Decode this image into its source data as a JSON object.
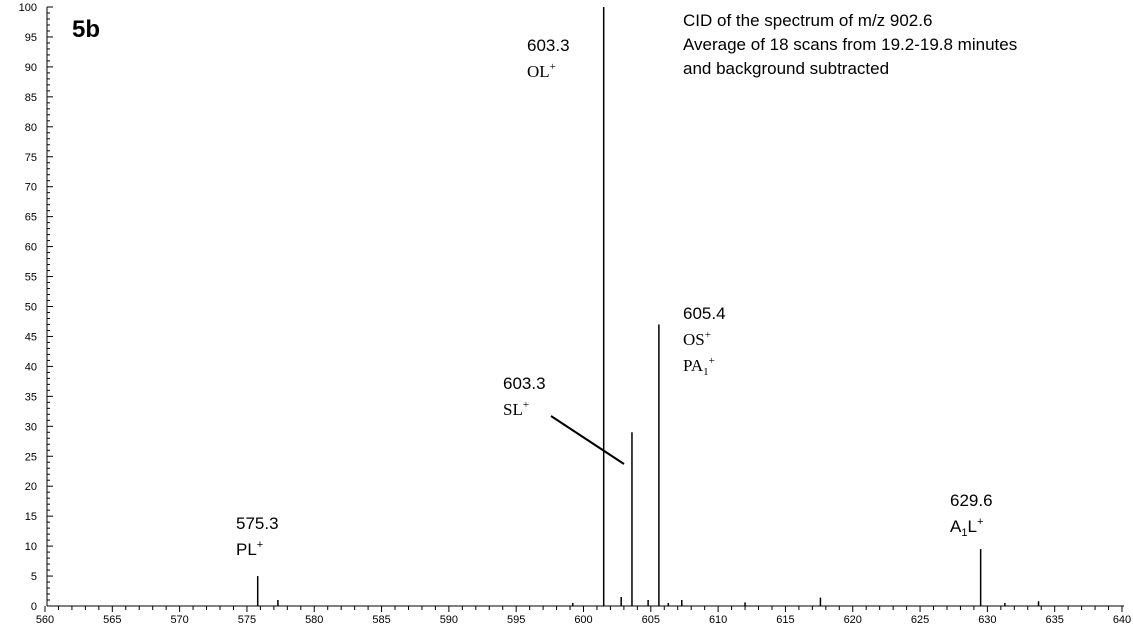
{
  "chart_data": {
    "type": "spectrum",
    "panel_label": "5b",
    "description": [
      "CID of the spectrum of m/z 902.6",
      "Average of 18 scans from 19.2-19.8 minutes",
      "and background subtracted"
    ],
    "x": [
      575.8,
      577.3,
      599.2,
      601.5,
      602.8,
      603.6,
      604.8,
      605.6,
      606.3,
      607.3,
      612.0,
      617.6,
      629.5,
      631.3,
      633.8
    ],
    "values": [
      5,
      1,
      0.5,
      100,
      1.5,
      29,
      1,
      47,
      0.5,
      1,
      0.6,
      1.4,
      9.5,
      0.5,
      0.8
    ],
    "color": "#000000",
    "xlim": [
      560,
      640
    ],
    "xticks": [
      560,
      565,
      570,
      575,
      580,
      585,
      590,
      595,
      600,
      605,
      610,
      615,
      620,
      625,
      630,
      635,
      640
    ],
    "ylim": [
      0,
      100
    ],
    "yticks": [
      0,
      5,
      10,
      15,
      20,
      25,
      30,
      35,
      40,
      45,
      50,
      55,
      60,
      65,
      70,
      75,
      80,
      85,
      90,
      95,
      100
    ],
    "annotations": [
      {
        "lines": [
          [
            {
              "text": "575.3"
            }
          ],
          [
            {
              "text": "PL"
            },
            {
              "text": "+",
              "script": "super"
            }
          ]
        ]
      },
      {
        "lines": [
          [
            {
              "text": "603.3"
            }
          ],
          [
            {
              "text": "OL"
            },
            {
              "text": "+",
              "script": "super"
            }
          ]
        ]
      },
      {
        "lines": [
          [
            {
              "text": "603.3"
            }
          ],
          [
            {
              "text": "SL"
            },
            {
              "text": "+",
              "script": "super"
            }
          ]
        ]
      },
      {
        "lines": [
          [
            {
              "text": "605.4"
            }
          ],
          [
            {
              "text": "OS"
            },
            {
              "text": "+",
              "script": "super"
            }
          ],
          [
            {
              "text": "PA"
            },
            {
              "text": "1",
              "script": "sub"
            },
            {
              "text": "+",
              "script": "super"
            }
          ]
        ]
      },
      {
        "lines": [
          [
            {
              "text": "629.6"
            }
          ],
          [
            {
              "text": "A"
            },
            {
              "text": "1",
              "script": "sub"
            },
            {
              "text": "L"
            },
            {
              "text": "+",
              "script": "super"
            }
          ]
        ]
      }
    ]
  }
}
